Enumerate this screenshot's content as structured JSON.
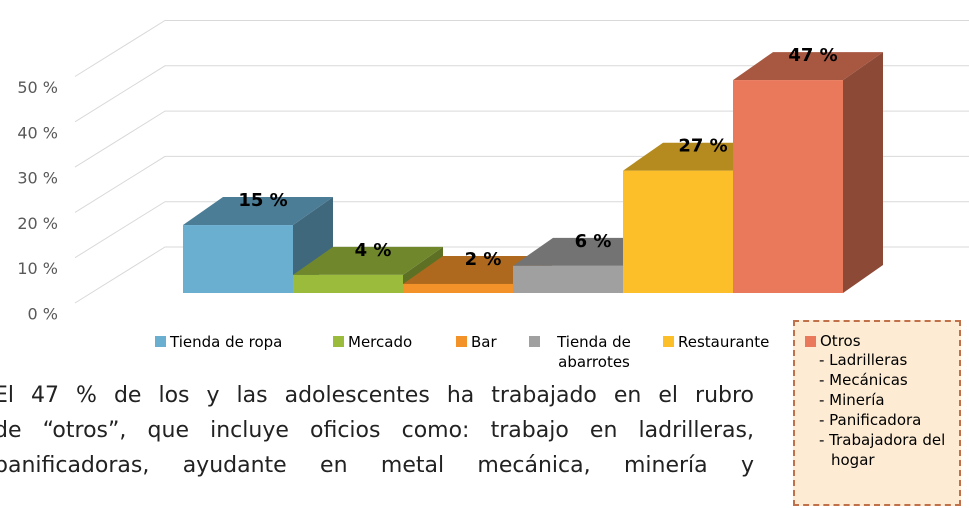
{
  "chart_data": {
    "type": "bar3d",
    "categories": [
      "Tienda de ropa",
      "Mercado",
      "Bar",
      "Tienda de abarrotes",
      "Restaurante",
      "Otros"
    ],
    "values": [
      15,
      4,
      2,
      6,
      27,
      47
    ],
    "value_labels": [
      "15 %",
      "4 %",
      "2 %",
      "6 %",
      "27 %",
      "47 %"
    ],
    "colors": [
      "#6aaed0",
      "#9bbb3c",
      "#f39229",
      "#a0a0a0",
      "#fcbf2a",
      "#e9795a"
    ],
    "ylim": [
      0,
      60
    ],
    "yticks": [
      {
        "value": 0,
        "label": "0 %"
      },
      {
        "value": 10,
        "label": "10 %"
      },
      {
        "value": 20,
        "label": "20 %"
      },
      {
        "value": 30,
        "label": "30 %"
      },
      {
        "value": 40,
        "label": "40 %"
      },
      {
        "value": 50,
        "label": "50 %"
      }
    ],
    "grid": true,
    "otros_items": [
      "- Ladrilleras",
      "- Mecánicas",
      "- Minería",
      "- Panificadora",
      "- Trabajadora del hogar"
    ]
  },
  "paragraph": [
    "El 47 % de los y las adolescentes ha trabajado en el rubro",
    "de “otros”, que incluye oficios como: trabajo en ladrilleras,",
    "panificadoras, ayudante en metal mecánica, minería y"
  ]
}
